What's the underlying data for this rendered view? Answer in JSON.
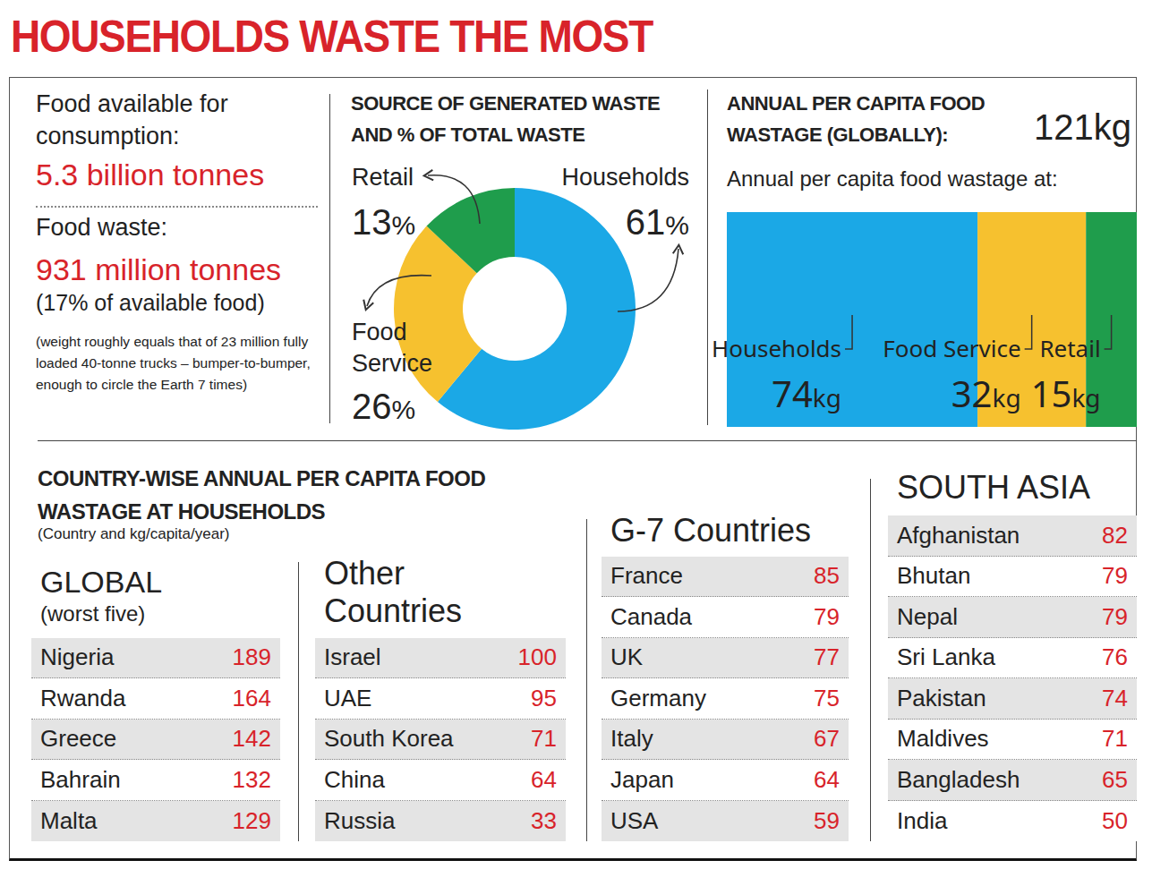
{
  "title": "HOUSEHOLDS WASTE THE MOST",
  "summary": {
    "available_label": "Food available for consumption:",
    "available_value": "5.3 billion tonnes",
    "waste_label": "Food waste:",
    "waste_value": "931 million tonnes",
    "waste_share": "(17% of available food)",
    "note": "(weight roughly equals that of 23 million fully loaded 40-tonne trucks – bumper-to-bumper, enough to circle the Earth 7 times)"
  },
  "chart_data": [
    {
      "type": "pie",
      "title": "SOURCE OF GENERATED WASTE AND % OF TOTAL WASTE",
      "categories": [
        "Households",
        "Food Service",
        "Retail"
      ],
      "values": [
        61,
        26,
        13
      ],
      "value_labels": [
        "61%",
        "26%",
        "13%"
      ],
      "colors": [
        "#1ba8e6",
        "#f6c12f",
        "#1f9d4c"
      ],
      "data_labels": true
    },
    {
      "type": "bar",
      "title": "ANNUAL PER CAPITA FOOD WASTAGE (GLOBALLY):",
      "total_label": "121kg",
      "subtitle": "Annual per capita food wastage at:",
      "orientation": "horizontal",
      "stacked": true,
      "categories": [
        "Households",
        "Food Service",
        "Retail"
      ],
      "values": [
        74,
        32,
        15
      ],
      "value_labels": [
        "74kg",
        "32kg",
        "15kg"
      ],
      "colors": [
        "#1ba8e6",
        "#f6c12f",
        "#1f9d4c"
      ],
      "xlim": [
        0,
        121
      ],
      "tick_labels": false,
      "data_labels": true
    }
  ],
  "tables": {
    "title": "COUNTRY-WISE ANNUAL PER CAPITA FOOD WASTAGE AT HOUSEHOLDS",
    "note": "(Country and kg/capita/year)",
    "groups": [
      {
        "title": "GLOBAL",
        "subtitle": "(worst five)",
        "rows": [
          {
            "country": "Nigeria",
            "value": 189
          },
          {
            "country": "Rwanda",
            "value": 164
          },
          {
            "country": "Greece",
            "value": 142
          },
          {
            "country": "Bahrain",
            "value": 132
          },
          {
            "country": "Malta",
            "value": 129
          }
        ]
      },
      {
        "title": "Other Countries",
        "rows": [
          {
            "country": "Israel",
            "value": 100
          },
          {
            "country": "UAE",
            "value": 95
          },
          {
            "country": "South Korea",
            "value": 71
          },
          {
            "country": "China",
            "value": 64
          },
          {
            "country": "Russia",
            "value": 33
          }
        ]
      },
      {
        "title": "G-7 Countries",
        "rows": [
          {
            "country": "France",
            "value": 85
          },
          {
            "country": "Canada",
            "value": 79
          },
          {
            "country": "UK",
            "value": 77
          },
          {
            "country": "Germany",
            "value": 75
          },
          {
            "country": "Italy",
            "value": 67
          },
          {
            "country": "Japan",
            "value": 64
          },
          {
            "country": "USA",
            "value": 59
          }
        ]
      },
      {
        "title": "SOUTH ASIA",
        "rows": [
          {
            "country": "Afghanistan",
            "value": 82
          },
          {
            "country": "Bhutan",
            "value": 79
          },
          {
            "country": "Nepal",
            "value": 79
          },
          {
            "country": "Sri Lanka",
            "value": 76
          },
          {
            "country": "Pakistan",
            "value": 74
          },
          {
            "country": "Maldives",
            "value": 71
          },
          {
            "country": "Bangladesh",
            "value": 65
          },
          {
            "country": "India",
            "value": 50
          }
        ]
      }
    ]
  }
}
